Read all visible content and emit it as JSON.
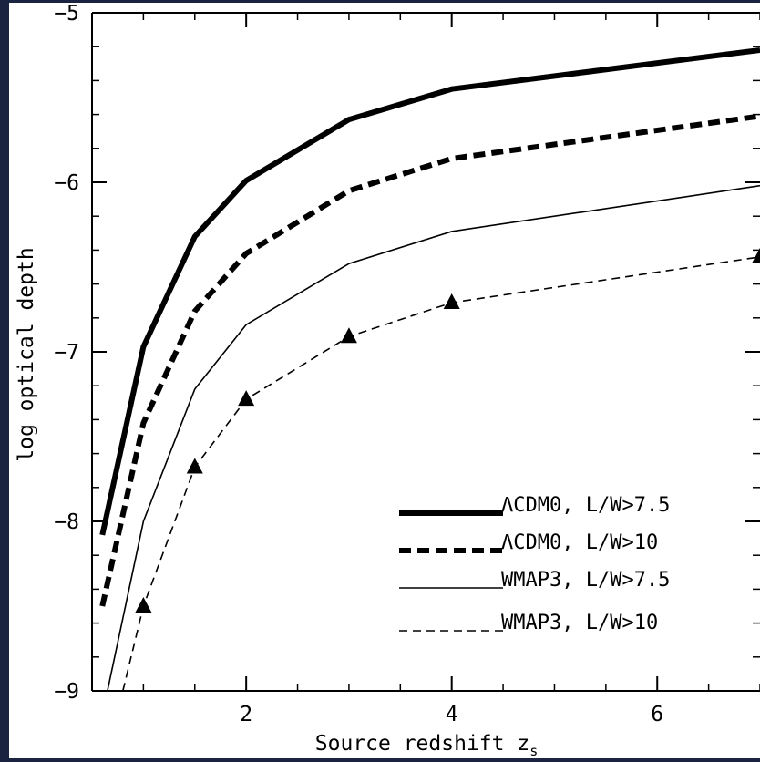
{
  "chart_data": {
    "type": "line",
    "xlabel": "Source redshift z",
    "xlabel_sub": "s",
    "ylabel": "log optical depth",
    "xlim": [
      0.5,
      7
    ],
    "ylim": [
      -9,
      -5
    ],
    "xticks": [
      2,
      4,
      6
    ],
    "yticks": [
      -9,
      -8,
      -7,
      -6,
      -5
    ],
    "grid": false,
    "legend_position": "bottom-right",
    "series": [
      {
        "name": "ΛCDM0, L/W>7.5",
        "style": "thick-solid",
        "x": [
          0.6,
          1.0,
          1.5,
          2.0,
          3.0,
          4.0,
          7.0
        ],
        "y": [
          -8.08,
          -6.97,
          -6.32,
          -5.99,
          -5.63,
          -5.45,
          -5.22
        ]
      },
      {
        "name": "ΛCDM0, L/W>10",
        "style": "thick-dashed",
        "x": [
          0.6,
          1.0,
          1.5,
          2.0,
          3.0,
          4.0,
          7.0
        ],
        "y": [
          -8.5,
          -7.42,
          -6.76,
          -6.42,
          -6.05,
          -5.86,
          -5.61
        ]
      },
      {
        "name": "WMAP3, L/W>7.5",
        "style": "thin-solid",
        "x": [
          0.65,
          1.0,
          1.5,
          2.0,
          3.0,
          4.0,
          7.0
        ],
        "y": [
          -9.0,
          -8.0,
          -7.22,
          -6.84,
          -6.48,
          -6.29,
          -6.02
        ]
      },
      {
        "name": "WMAP3, L/W>10",
        "style": "thin-dashed-triangles",
        "x": [
          0.8,
          1.0,
          1.5,
          2.0,
          3.0,
          4.0,
          7.0
        ],
        "y": [
          -9.0,
          -8.5,
          -7.68,
          -7.28,
          -6.91,
          -6.71,
          -6.44
        ]
      }
    ]
  },
  "colors": {
    "frame_background": "#1a2340",
    "plot_background": "#ffffff",
    "ink": "#000000"
  }
}
